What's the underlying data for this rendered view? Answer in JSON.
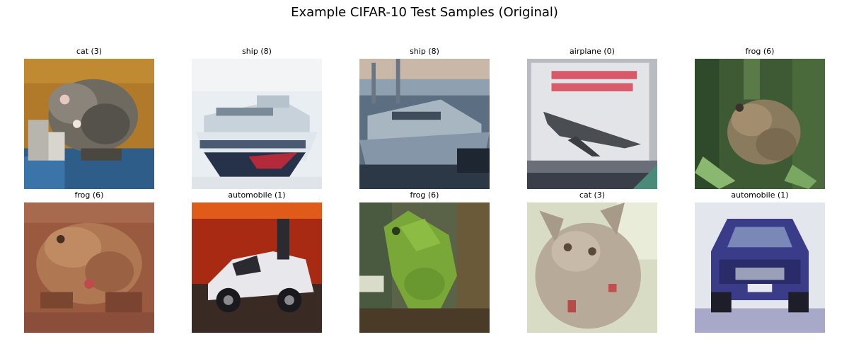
{
  "title": "Example CIFAR-10 Test Samples (Original)",
  "samples": [
    {
      "label": "cat (3)"
    },
    {
      "label": "ship (8)"
    },
    {
      "label": "ship (8)"
    },
    {
      "label": "airplane (0)"
    },
    {
      "label": "frog (6)"
    },
    {
      "label": "frog (6)"
    },
    {
      "label": "automobile (1)"
    },
    {
      "label": "frog (6)"
    },
    {
      "label": "cat (3)"
    },
    {
      "label": "automobile (1)"
    }
  ]
}
